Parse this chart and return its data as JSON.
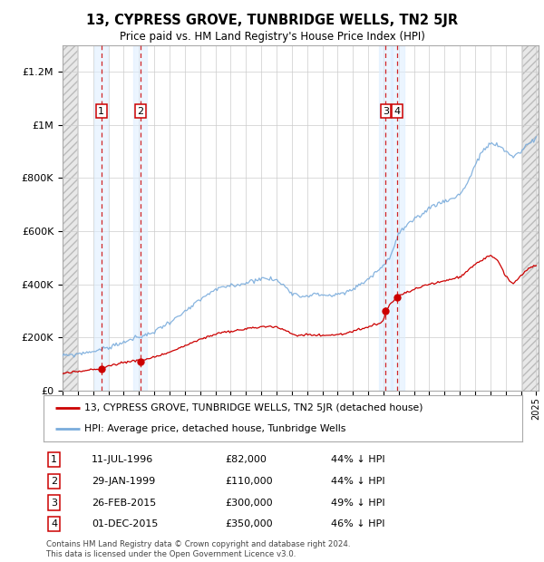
{
  "title": "13, CYPRESS GROVE, TUNBRIDGE WELLS, TN2 5JR",
  "subtitle": "Price paid vs. HM Land Registry's House Price Index (HPI)",
  "ylim": [
    0,
    1300000
  ],
  "yticks": [
    0,
    200000,
    400000,
    600000,
    800000,
    1000000,
    1200000
  ],
  "ytick_labels": [
    "£0",
    "£200K",
    "£400K",
    "£600K",
    "£800K",
    "£1M",
    "£1.2M"
  ],
  "x_start_year": 1994,
  "x_end_year": 2025,
  "transactions": [
    {
      "num": 1,
      "date": "11-JUL-1996",
      "year": 1996.53,
      "price": 82000,
      "pct": "44%",
      "dir": "↓"
    },
    {
      "num": 2,
      "date": "29-JAN-1999",
      "year": 1999.08,
      "price": 110000,
      "pct": "44%",
      "dir": "↓"
    },
    {
      "num": 3,
      "date": "26-FEB-2015",
      "year": 2015.15,
      "price": 300000,
      "pct": "49%",
      "dir": "↓"
    },
    {
      "num": 4,
      "date": "01-DEC-2015",
      "year": 2015.92,
      "price": 350000,
      "pct": "46%",
      "dir": "↓"
    }
  ],
  "legend_line1": "13, CYPRESS GROVE, TUNBRIDGE WELLS, TN2 5JR (detached house)",
  "legend_line2": "HPI: Average price, detached house, Tunbridge Wells",
  "footer": "Contains HM Land Registry data © Crown copyright and database right 2024.\nThis data is licensed under the Open Government Licence v3.0.",
  "red_color": "#cc0000",
  "blue_color": "#7aacdc",
  "bg_color": "#ffffff",
  "hpi_kx": [
    1994.0,
    1994.5,
    1995.0,
    1995.5,
    1996.0,
    1996.5,
    1997.0,
    1997.5,
    1998.0,
    1998.5,
    1999.0,
    1999.5,
    2000.0,
    2000.5,
    2001.0,
    2001.5,
    2002.0,
    2002.5,
    2003.0,
    2003.5,
    2004.0,
    2004.5,
    2005.0,
    2005.5,
    2006.0,
    2006.5,
    2007.0,
    2007.5,
    2008.0,
    2008.5,
    2009.0,
    2009.5,
    2010.0,
    2010.5,
    2011.0,
    2011.5,
    2012.0,
    2012.5,
    2013.0,
    2013.5,
    2014.0,
    2014.5,
    2015.0,
    2015.5,
    2016.0,
    2016.5,
    2017.0,
    2017.5,
    2018.0,
    2018.5,
    2019.0,
    2019.5,
    2020.0,
    2020.5,
    2021.0,
    2021.5,
    2022.0,
    2022.5,
    2023.0,
    2023.5,
    2024.0,
    2024.5,
    2025.0
  ],
  "hpi_ky": [
    130000,
    133000,
    138000,
    143000,
    148000,
    154000,
    162000,
    172000,
    182000,
    192000,
    200000,
    210000,
    222000,
    240000,
    258000,
    275000,
    295000,
    318000,
    340000,
    362000,
    378000,
    388000,
    395000,
    398000,
    405000,
    415000,
    422000,
    420000,
    415000,
    395000,
    370000,
    355000,
    358000,
    362000,
    360000,
    358000,
    360000,
    368000,
    380000,
    400000,
    420000,
    445000,
    470000,
    510000,
    590000,
    620000,
    640000,
    660000,
    690000,
    700000,
    715000,
    720000,
    740000,
    780000,
    850000,
    900000,
    930000,
    920000,
    900000,
    880000,
    900000,
    930000,
    950000
  ],
  "price_kx": [
    1994.0,
    1995.0,
    1996.0,
    1996.53,
    1997.0,
    1998.0,
    1999.0,
    1999.08,
    2000.0,
    2001.0,
    2002.0,
    2003.0,
    2004.0,
    2005.0,
    2006.0,
    2007.0,
    2007.5,
    2008.0,
    2008.5,
    2009.0,
    2009.5,
    2010.0,
    2011.0,
    2012.0,
    2013.0,
    2014.0,
    2014.5,
    2015.0,
    2015.15,
    2015.5,
    2015.92,
    2016.0,
    2017.0,
    2018.0,
    2019.0,
    2020.0,
    2021.0,
    2022.0,
    2022.5,
    2023.0,
    2023.5,
    2024.0,
    2024.5,
    2025.0
  ],
  "price_ky": [
    65000,
    71000,
    79000,
    82000,
    92000,
    106000,
    116000,
    110000,
    126000,
    145000,
    168000,
    192000,
    213000,
    222000,
    232000,
    240000,
    242000,
    238000,
    228000,
    213000,
    208000,
    210000,
    208000,
    210000,
    222000,
    238000,
    248000,
    260000,
    300000,
    330000,
    350000,
    358000,
    380000,
    400000,
    412000,
    428000,
    475000,
    510000,
    490000,
    430000,
    400000,
    430000,
    460000,
    470000
  ]
}
